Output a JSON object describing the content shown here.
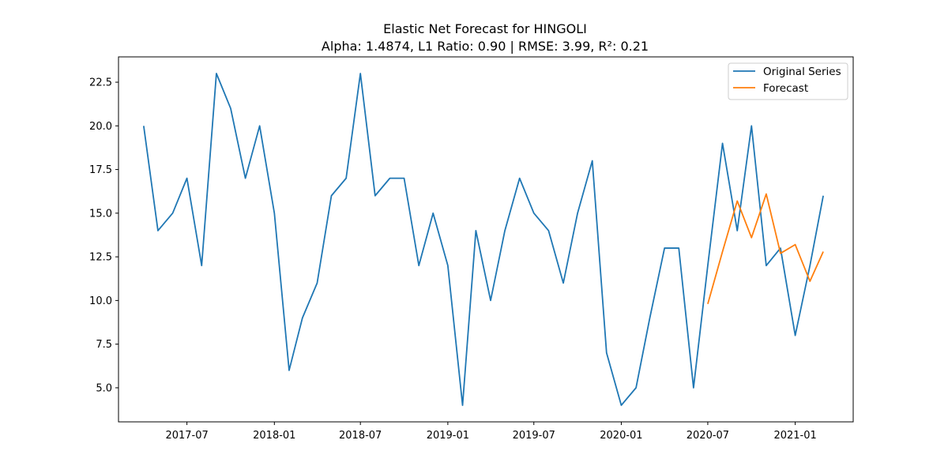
{
  "chart_data": {
    "type": "line",
    "title": "Elastic Net Forecast for HINGOLI",
    "subtitle": "Alpha: 1.4874, L1 Ratio: 0.90 | RMSE: 3.99, R²: 0.21",
    "xlabel": "",
    "ylabel": "",
    "xlim": [
      "2017-02-07",
      "2021-05-03"
    ],
    "ylim": [
      3.05,
      23.95
    ],
    "x_ticks": [
      "2017-07-01",
      "2018-01-01",
      "2018-07-01",
      "2019-01-01",
      "2019-07-01",
      "2020-01-01",
      "2020-07-01",
      "2021-01-01"
    ],
    "x_tick_labels": [
      "2017-07",
      "2018-01",
      "2018-07",
      "2019-01",
      "2019-07",
      "2020-01",
      "2020-07",
      "2021-01"
    ],
    "y_ticks": [
      5.0,
      7.5,
      10.0,
      12.5,
      15.0,
      17.5,
      20.0,
      22.5
    ],
    "y_tick_labels": [
      "5.0",
      "7.5",
      "10.0",
      "12.5",
      "15.0",
      "17.5",
      "20.0",
      "22.5"
    ],
    "grid": false,
    "legend_position": "top-right",
    "series": [
      {
        "name": "Original Series",
        "color": "#1f77b4",
        "x": [
          "2017-04-01",
          "2017-05-01",
          "2017-06-01",
          "2017-07-01",
          "2017-08-01",
          "2017-09-01",
          "2017-10-01",
          "2017-11-01",
          "2017-12-01",
          "2018-01-01",
          "2018-02-01",
          "2018-03-01",
          "2018-04-01",
          "2018-05-01",
          "2018-06-01",
          "2018-07-01",
          "2018-08-01",
          "2018-09-01",
          "2018-10-01",
          "2018-11-01",
          "2018-12-01",
          "2019-01-01",
          "2019-02-01",
          "2019-03-01",
          "2019-04-01",
          "2019-05-01",
          "2019-06-01",
          "2019-07-01",
          "2019-08-01",
          "2019-09-01",
          "2019-10-01",
          "2019-11-01",
          "2019-12-01",
          "2020-01-01",
          "2020-02-01",
          "2020-03-01",
          "2020-04-01",
          "2020-05-01",
          "2020-06-01",
          "2020-07-01",
          "2020-08-01",
          "2020-09-01",
          "2020-10-01",
          "2020-11-01",
          "2020-12-01",
          "2021-01-01",
          "2021-02-01",
          "2021-03-01"
        ],
        "values": [
          20,
          14,
          15,
          17,
          12,
          23,
          21,
          17,
          20,
          15,
          6,
          9,
          11,
          16,
          17,
          23,
          16,
          17,
          17,
          12,
          15,
          12,
          4,
          14,
          10,
          14,
          17,
          15,
          14,
          11,
          15,
          18,
          7,
          4,
          5,
          9,
          13,
          13,
          5,
          12,
          19,
          14,
          20,
          12,
          13,
          8,
          12,
          16
        ]
      },
      {
        "name": "Forecast",
        "color": "#ff7f0e",
        "x": [
          "2020-07-01",
          "2020-08-01",
          "2020-09-01",
          "2020-10-01",
          "2020-11-01",
          "2020-12-01",
          "2021-01-01",
          "2021-02-01",
          "2021-03-01"
        ],
        "values": [
          9.8,
          12.8,
          15.7,
          13.6,
          16.1,
          12.7,
          13.2,
          11.1,
          12.8
        ]
      }
    ]
  }
}
